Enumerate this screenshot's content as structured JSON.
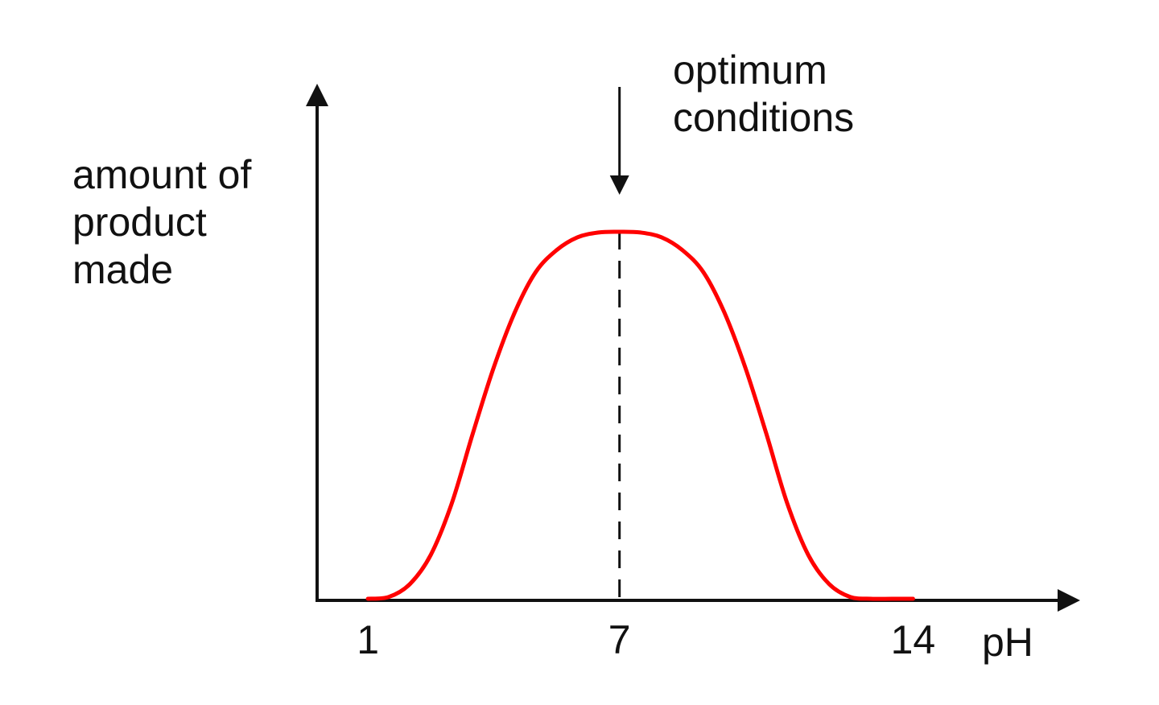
{
  "chart_data": {
    "type": "line",
    "ylabel_lines": [
      "amount of",
      "product",
      "made"
    ],
    "xlabel": "pH",
    "x_ticks": [
      1,
      7,
      14
    ],
    "x_tick_labels": [
      "1",
      "7",
      "14"
    ],
    "xlim": [
      -0.2,
      24
    ],
    "ylim": [
      0,
      1.35
    ],
    "grid": false,
    "series": [
      {
        "color": "#ff0000",
        "x": [
          1,
          1.5,
          2,
          2.5,
          3,
          3.5,
          4,
          4.5,
          5,
          5.5,
          6,
          6.5,
          7,
          7.5,
          8,
          8.5,
          9,
          9.5,
          10,
          10.5,
          11,
          11.5,
          12,
          12.5,
          13,
          13.5,
          14
        ],
        "y": [
          0,
          0.005,
          0.04,
          0.12,
          0.26,
          0.45,
          0.63,
          0.78,
          0.89,
          0.95,
          0.985,
          0.998,
          1.0,
          0.998,
          0.985,
          0.95,
          0.89,
          0.78,
          0.63,
          0.45,
          0.26,
          0.12,
          0.04,
          0.005,
          0,
          0,
          0
        ]
      }
    ],
    "optimum": {
      "x": 7,
      "label_lines": [
        "optimum",
        "conditions"
      ]
    }
  }
}
